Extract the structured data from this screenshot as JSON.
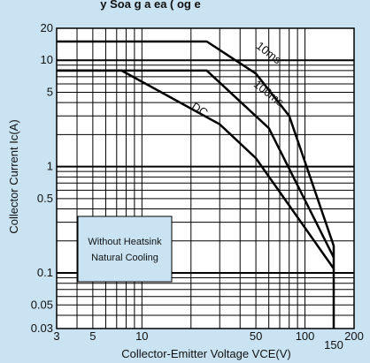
{
  "title_fragment": "y Soa g a ea ( og e",
  "chart_data": {
    "type": "line",
    "xscale": "log",
    "yscale": "log",
    "xlim": [
      3,
      200
    ],
    "ylim": [
      0.03,
      20
    ],
    "grid": true,
    "xlabel": "Collector-Emitter Voltage VCE(V)",
    "ylabel": "Collector Current Ic(A)",
    "x_ticks": [
      3,
      5,
      10,
      50,
      100,
      150,
      200
    ],
    "x_tick_labels": [
      "3",
      "5",
      "10",
      "50",
      "100",
      "150",
      "200"
    ],
    "y_ticks": [
      0.03,
      0.05,
      0.1,
      0.5,
      1,
      5,
      10,
      20
    ],
    "y_tick_labels": [
      "0.03",
      "0.05",
      "0.1",
      "0.5",
      "1",
      "5",
      "10",
      "20"
    ],
    "series": [
      {
        "name": "10ms",
        "x": [
          3,
          25,
          50,
          80,
          150,
          150
        ],
        "y": [
          15,
          15,
          7.5,
          3,
          0.18,
          0.03
        ]
      },
      {
        "name": "100ms",
        "x": [
          3,
          25,
          60,
          150
        ],
        "y": [
          8,
          8,
          2.3,
          0.14
        ]
      },
      {
        "name": "DC",
        "x": [
          3,
          7.5,
          30,
          50,
          150
        ],
        "y": [
          8,
          8,
          2.5,
          1.2,
          0.11
        ]
      }
    ],
    "annotation": {
      "lines": [
        "Without Heatsink",
        "Natural Cooling"
      ]
    }
  }
}
